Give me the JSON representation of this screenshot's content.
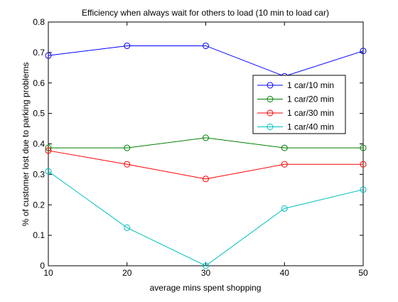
{
  "chart_data": {
    "type": "line",
    "title": "Efficiency when always wait for others to load (10 min to load car)",
    "xlabel": "average mins spent shopping",
    "ylabel": "% of customer lost due to parking problems",
    "x": [
      10,
      20,
      30,
      40,
      50
    ],
    "xlim": [
      10,
      50
    ],
    "ylim": [
      0,
      0.8
    ],
    "xticks": [
      "10",
      "20",
      "30",
      "40",
      "50"
    ],
    "yticks": [
      "0",
      "0.1",
      "0.2",
      "0.3",
      "0.4",
      "0.5",
      "0.6",
      "0.7",
      "0.8"
    ],
    "grid": false,
    "legend_position": "right",
    "marker": "circle",
    "series": [
      {
        "name": "1 car/10 min",
        "color": "#0000ff",
        "values": [
          0.69,
          0.722,
          0.722,
          0.622,
          0.705
        ]
      },
      {
        "name": "1 car/20 min",
        "color": "#008000",
        "values": [
          0.387,
          0.387,
          0.42,
          0.387,
          0.387
        ]
      },
      {
        "name": "1 car/30 min",
        "color": "#ff0000",
        "values": [
          0.378,
          0.333,
          0.285,
          0.333,
          0.333
        ]
      },
      {
        "name": "1 car/40 min",
        "color": "#00bfbf",
        "values": [
          0.31,
          0.125,
          0.0,
          0.188,
          0.25
        ]
      }
    ]
  }
}
